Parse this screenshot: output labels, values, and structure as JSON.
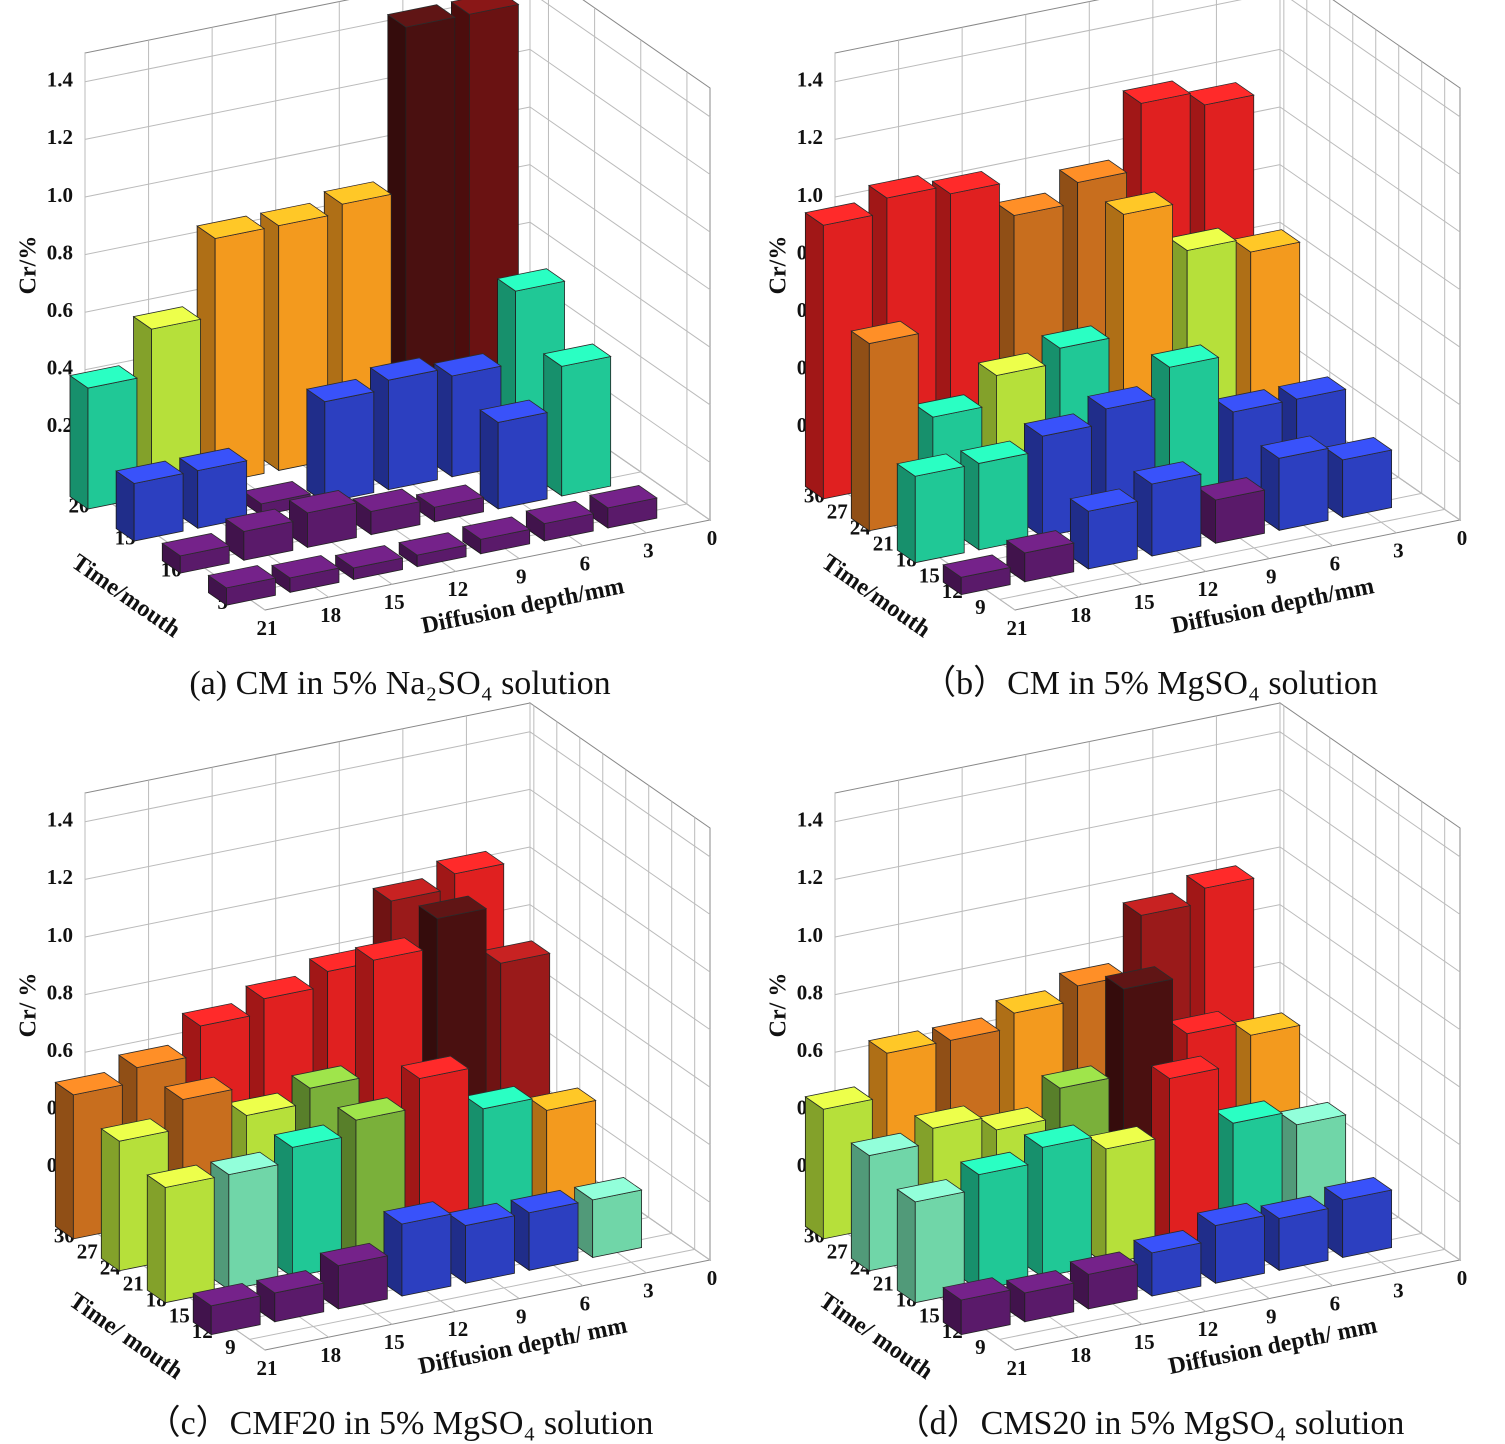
{
  "chart_data": [
    {
      "type": "bar3d",
      "title": "(a) CM in 5% Na₂SO₄ solution",
      "ylabel": "Cr/%",
      "zlabel": "Time/mouth",
      "xlabel": "Diffusion depth/mm",
      "xlim": [
        0,
        21
      ],
      "xticks": [
        0,
        3,
        6,
        9,
        12,
        15,
        18,
        21
      ],
      "zlim": [
        2.5,
        22
      ],
      "zticks": [
        5,
        10,
        15,
        20
      ],
      "ylim": [
        0,
        1.5
      ],
      "yticks": [
        0.2,
        0.4,
        0.6,
        0.8,
        {
          "value": 1,
          "label": "1.0"
        },
        1.2,
        1.4
      ],
      "x": [
        21,
        18,
        15,
        12,
        9,
        6,
        3
      ],
      "series": [
        {
          "z": 20,
          "values": [
            0.42,
            0.58,
            0.85,
            0.85,
            0.88,
            1.45,
            1.45
          ],
          "colors": [
            "#20c896",
            "#b6e03a",
            "#f39a1e",
            "#f39a1e",
            "#f39a1e",
            "#4a1010",
            "#6a1212"
          ]
        },
        {
          "z": 15,
          "values": [
            0.2,
            0.2,
            0.04,
            0.35,
            0.38,
            0.35,
            0.6
          ],
          "colors": [
            "#2c3fc0",
            "#2c3fc0",
            "#5a1a6a",
            "#2c3fc0",
            "#2c3fc0",
            "#2c3fc0",
            "#20c896"
          ]
        },
        {
          "z": 10,
          "values": [
            0.06,
            0.1,
            0.12,
            0.08,
            0.05,
            0.3,
            0.45
          ],
          "colors": [
            "#5a1a6a",
            "#5a1a6a",
            "#5a1a6a",
            "#5a1a6a",
            "#5a1a6a",
            "#2c3fc0",
            "#20c896"
          ]
        },
        {
          "z": 5,
          "values": [
            0.06,
            0.05,
            0.04,
            0.04,
            0.05,
            0.06,
            0.07
          ],
          "colors": [
            "#5a1a6a",
            "#5a1a6a",
            "#5a1a6a",
            "#5a1a6a",
            "#5a1a6a",
            "#5a1a6a",
            "#5a1a6a"
          ]
        }
      ]
    },
    {
      "type": "bar3d",
      "title": "（b）CM in 5% MgSO₄ solution",
      "ylabel": "Cr/%",
      "zlabel": "Time/mouth",
      "xlabel": "Diffusion depth/mm",
      "xlim": [
        0,
        21
      ],
      "xticks": [
        0,
        3,
        6,
        9,
        12,
        15,
        18,
        21
      ],
      "zlim": [
        7,
        30.5
      ],
      "zticks": [
        9,
        12,
        15,
        18,
        21,
        24,
        27,
        30
      ],
      "ylim": [
        0,
        1.5
      ],
      "yticks": [
        0.2,
        0.4,
        0.6,
        0.8,
        {
          "value": 1,
          "label": "1.0"
        },
        1.2,
        1.4
      ],
      "x": [
        21,
        18,
        15,
        12,
        9,
        6,
        3
      ],
      "series": [
        {
          "z": 30,
          "values": [
            0.95,
            1.0,
            0.97,
            0.85,
            0.92,
            1.15,
            1.1
          ],
          "colors": [
            "#e02020",
            "#e02020",
            "#e02020",
            "#c86e1e",
            "#c86e1e",
            "#e02020",
            "#e02020"
          ]
        },
        {
          "z": 24,
          "values": [
            0.65,
            0.35,
            0.45,
            0.5,
            0.92,
            0.75,
            0.7
          ],
          "colors": [
            "#c86e1e",
            "#20c896",
            "#b6e03a",
            "#20c896",
            "#f39a1e",
            "#b6e03a",
            "#f39a1e"
          ]
        },
        {
          "z": 18,
          "values": [
            0.3,
            0.3,
            0.35,
            0.4,
            0.5,
            0.3,
            0.3
          ],
          "colors": [
            "#20c896",
            "#20c896",
            "#2c3fc0",
            "#2c3fc0",
            "#20c896",
            "#2c3fc0",
            "#2c3fc0"
          ]
        },
        {
          "z": 12,
          "values": [
            0.06,
            0.1,
            0.2,
            0.25,
            0.15,
            0.25,
            0.2
          ],
          "colors": [
            "#5a1a6a",
            "#5a1a6a",
            "#2c3fc0",
            "#2c3fc0",
            "#5a1a6a",
            "#2c3fc0",
            "#2c3fc0"
          ]
        }
      ]
    },
    {
      "type": "bar3d",
      "title": "（c）CMF20 in 5% MgSO₄ solution",
      "ylabel": "Cr/ %",
      "zlabel": "Time/ mouth",
      "xlabel": "Diffusion depth/ mm",
      "xlim": [
        0,
        21
      ],
      "xticks": [
        0,
        3,
        6,
        9,
        12,
        15,
        18,
        21
      ],
      "zlim": [
        7,
        30.5
      ],
      "zticks": [
        9,
        12,
        15,
        18,
        21,
        24,
        27,
        30
      ],
      "ylim": [
        0,
        1.5
      ],
      "yticks": [
        0.2,
        0.4,
        0.6,
        0.8,
        {
          "value": 1,
          "label": "1.0"
        },
        1.2,
        1.4
      ],
      "x": [
        21,
        18,
        15,
        12,
        9,
        6,
        3
      ],
      "series": [
        {
          "z": 30,
          "values": [
            0.5,
            0.55,
            0.65,
            0.7,
            0.75,
            0.95,
            1.0
          ],
          "colors": [
            "#c86e1e",
            "#c86e1e",
            "#e02020",
            "#e02020",
            "#e02020",
            "#9a1a1a",
            "#e02020"
          ]
        },
        {
          "z": 24,
          "values": [
            0.45,
            0.55,
            0.45,
            0.5,
            0.9,
            1.0,
            0.8
          ],
          "colors": [
            "#b6e03a",
            "#c86e1e",
            "#b6e03a",
            "#7ab03a",
            "#e02020",
            "#4a1010",
            "#9a1a1a"
          ]
        },
        {
          "z": 18,
          "values": [
            0.4,
            0.4,
            0.45,
            0.5,
            0.6,
            0.45,
            0.4
          ],
          "colors": [
            "#b6e03a",
            "#70d6a8",
            "#20c896",
            "#7ab03a",
            "#e02020",
            "#20c896",
            "#f39a1e"
          ]
        },
        {
          "z": 12,
          "values": [
            0.1,
            0.1,
            0.15,
            0.25,
            0.2,
            0.2,
            0.2
          ],
          "colors": [
            "#5a1a6a",
            "#5a1a6a",
            "#5a1a6a",
            "#2c3fc0",
            "#2c3fc0",
            "#2c3fc0",
            "#70d6a8"
          ]
        }
      ]
    },
    {
      "type": "bar3d",
      "title": "（d）CMS20 in 5% MgSO₄ solution",
      "ylabel": "Cr/ %",
      "zlabel": "Time/ mouth",
      "xlabel": "Diffusion depth/ mm",
      "xlim": [
        0,
        21
      ],
      "xticks": [
        0,
        3,
        6,
        9,
        12,
        15,
        18,
        21
      ],
      "zlim": [
        7,
        30.5
      ],
      "zticks": [
        9,
        12,
        15,
        18,
        21,
        24,
        27,
        30
      ],
      "ylim": [
        0,
        1.5
      ],
      "yticks": [
        0.2,
        0.4,
        0.6,
        0.8,
        {
          "value": 1,
          "label": "1.0"
        },
        1.2,
        1.4
      ],
      "x": [
        21,
        18,
        15,
        12,
        9,
        6,
        3
      ],
      "series": [
        {
          "z": 30,
          "values": [
            0.45,
            0.6,
            0.6,
            0.65,
            0.7,
            0.9,
            0.95
          ],
          "colors": [
            "#b6e03a",
            "#f39a1e",
            "#c86e1e",
            "#f39a1e",
            "#c86e1e",
            "#9a1a1a",
            "#e02020"
          ]
        },
        {
          "z": 24,
          "values": [
            0.4,
            0.45,
            0.4,
            0.5,
            0.8,
            0.6,
            0.55
          ],
          "colors": [
            "#70d6a8",
            "#b6e03a",
            "#b6e03a",
            "#7ab03a",
            "#4a1010",
            "#e02020",
            "#f39a1e"
          ]
        },
        {
          "z": 18,
          "values": [
            0.35,
            0.4,
            0.45,
            0.4,
            0.6,
            0.4,
            0.35
          ],
          "colors": [
            "#70d6a8",
            "#20c896",
            "#20c896",
            "#b6e03a",
            "#e02020",
            "#20c896",
            "#70d6a8"
          ]
        },
        {
          "z": 12,
          "values": [
            0.12,
            0.1,
            0.12,
            0.15,
            0.2,
            0.18,
            0.2
          ],
          "colors": [
            "#5a1a6a",
            "#5a1a6a",
            "#5a1a6a",
            "#2c3fc0",
            "#2c3fc0",
            "#2c3fc0",
            "#2c3fc0"
          ]
        }
      ]
    }
  ]
}
